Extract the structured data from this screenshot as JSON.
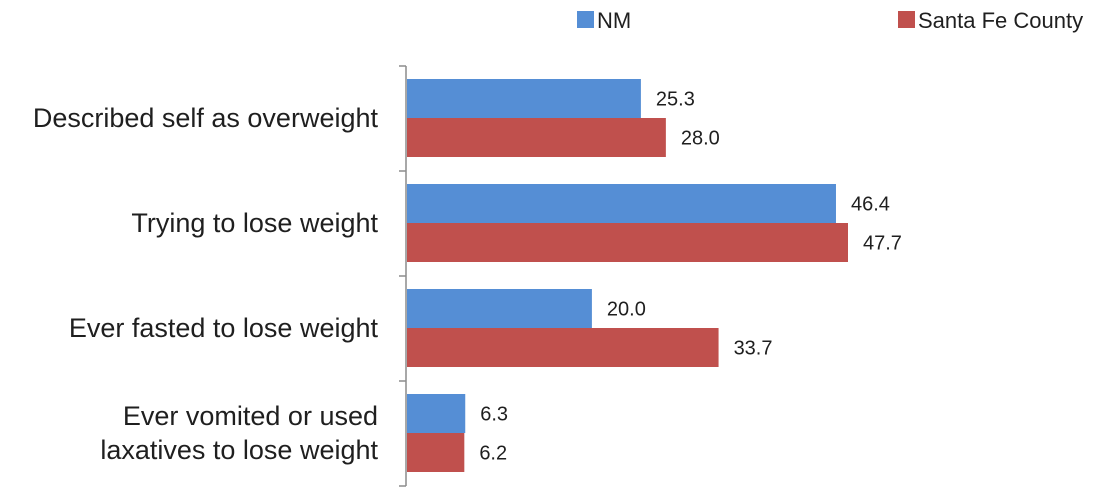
{
  "chart_data": {
    "type": "bar",
    "orientation": "horizontal",
    "categories": [
      "Described self as overweight",
      "Trying to lose weight",
      "Ever fasted to lose weight",
      "Ever vomited or used laxatives to lose weight"
    ],
    "category_label_lines": [
      [
        "Described self as overweight"
      ],
      [
        "Trying to lose weight"
      ],
      [
        "Ever fasted to lose weight"
      ],
      [
        "Ever vomited or used",
        "laxatives to lose weight"
      ]
    ],
    "series": [
      {
        "name": "NM",
        "color": "#558ED5",
        "values": [
          25.3,
          46.4,
          20.0,
          6.3
        ],
        "labels": [
          "25.3",
          "46.4",
          "20.0",
          "6.3"
        ]
      },
      {
        "name": "Santa Fe County",
        "color": "#C0504D",
        "values": [
          28.0,
          47.7,
          33.7,
          6.2
        ],
        "labels": [
          "28.0",
          "47.7",
          "33.7",
          "6.2"
        ]
      }
    ],
    "xlim": [
      0,
      60
    ],
    "grid": false,
    "legend_position": "top-right"
  }
}
